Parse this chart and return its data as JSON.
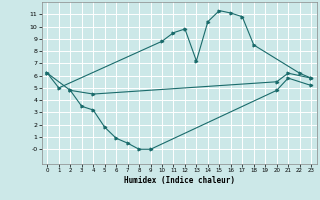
{
  "background_color": "#cce8e8",
  "grid_color": "#ffffff",
  "line_color": "#1a6b6b",
  "xlabel": "Humidex (Indice chaleur)",
  "xlim": [
    -0.5,
    23.5
  ],
  "ylim": [
    -1.2,
    12
  ],
  "xticks": [
    0,
    1,
    2,
    3,
    4,
    5,
    6,
    7,
    8,
    9,
    10,
    11,
    12,
    13,
    14,
    15,
    16,
    17,
    18,
    19,
    20,
    21,
    22,
    23
  ],
  "yticks": [
    0,
    1,
    2,
    3,
    4,
    5,
    6,
    7,
    8,
    9,
    10,
    11
  ],
  "curve_top": {
    "x": [
      0,
      1,
      10,
      11,
      12,
      13,
      14,
      15,
      16,
      17,
      18,
      22,
      23
    ],
    "y": [
      6.2,
      5.0,
      8.8,
      9.5,
      9.8,
      7.2,
      10.4,
      11.3,
      11.1,
      10.8,
      8.5,
      6.2,
      5.8
    ]
  },
  "curve_mid": {
    "x": [
      0,
      2,
      4,
      20,
      21,
      23
    ],
    "y": [
      6.2,
      4.8,
      4.5,
      5.5,
      6.2,
      5.8
    ]
  },
  "curve_bot": {
    "x": [
      2,
      3,
      4,
      5,
      6,
      7,
      8,
      9,
      20,
      21,
      23
    ],
    "y": [
      4.8,
      3.5,
      3.2,
      1.8,
      0.9,
      0.5,
      0.0,
      0.0,
      4.8,
      5.8,
      5.2
    ]
  }
}
